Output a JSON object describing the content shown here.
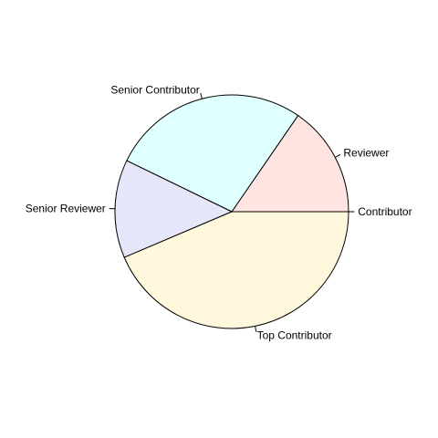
{
  "chart_data": {
    "type": "pie",
    "title": "",
    "start_angle_deg": 0,
    "direction": "counterclockwise",
    "slices": [
      {
        "label": "Contributor",
        "value": 0,
        "color": "#ffffff"
      },
      {
        "label": "Reviewer",
        "value": 0.154,
        "color": "#ffe4e1"
      },
      {
        "label": "Senior Contributor",
        "value": 0.274,
        "color": "#e0ffff"
      },
      {
        "label": "Senior Reviewer",
        "value": 0.136,
        "color": "#e6e6fa"
      },
      {
        "label": "Top Contributor",
        "value": 0.436,
        "color": "#fff8dc"
      }
    ],
    "border_color": "#000000",
    "background": "#ffffff"
  }
}
